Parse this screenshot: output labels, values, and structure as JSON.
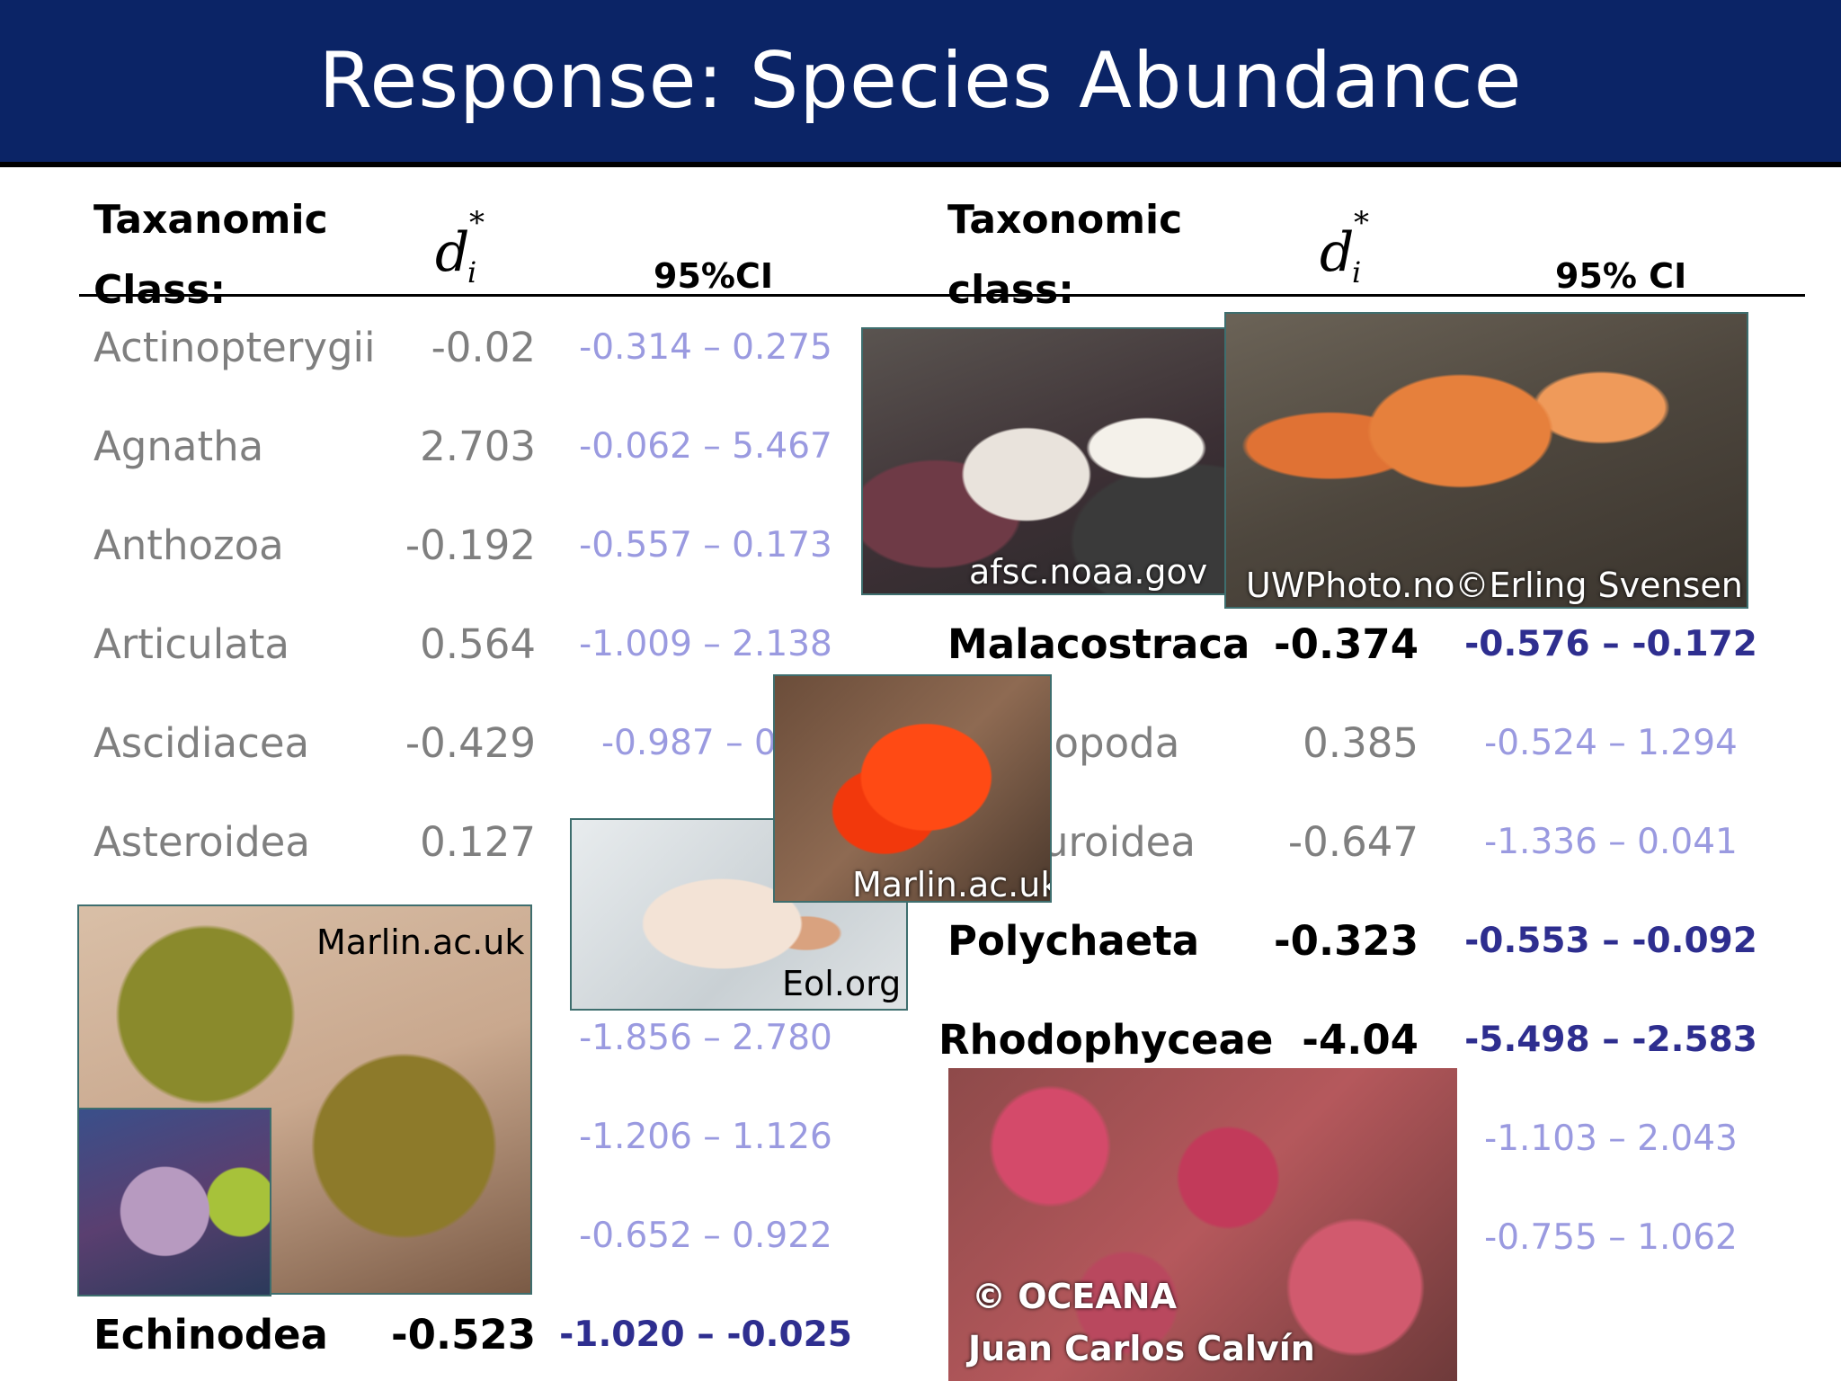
{
  "title": "Response: Species Abundance",
  "left_header": {
    "class_label_1": "Taxanomic",
    "class_label_2": "Class:",
    "d_symbol": "d",
    "d_sup": "*",
    "d_sub": "i",
    "ci_label": "95%CI"
  },
  "right_header": {
    "class_label_1": "Taxonomic",
    "class_label_2": "class:",
    "d_symbol": "d",
    "d_sup": "*",
    "d_sub": "i",
    "ci_label": "95% CI"
  },
  "left_rows": [
    {
      "name": "Actinopterygii",
      "value": "-0.02",
      "ci": "-0.314 – 0.275"
    },
    {
      "name": "Agnatha",
      "value": "2.703",
      "ci": "-0.062 – 5.467"
    },
    {
      "name": "Anthozoa",
      "value": "-0.192",
      "ci": "-0.557 – 0.173"
    },
    {
      "name": "Articulata",
      "value": "0.564",
      "ci": "-1.009 – 2.138"
    },
    {
      "name": "Ascidiacea",
      "value": "-0.429",
      "ci": "-0.987 – 0.1"
    },
    {
      "name": "Asteroidea",
      "value": "0.127",
      "ci": ""
    },
    {
      "name": "",
      "value": "",
      "ci": ""
    },
    {
      "name": "",
      "value": "",
      "ci": "-1.856 – 2.780"
    },
    {
      "name": "",
      "value": "",
      "ci": "-1.206 – 1.126"
    },
    {
      "name": "",
      "value": "",
      "ci": "-0.652 – 0.922"
    },
    {
      "name": "Echinodea",
      "value": "-0.523",
      "ci": "-1.020 – -0.025"
    }
  ],
  "right_rows": [
    {
      "name": "Malacostraca",
      "value": "-0.374",
      "ci": "-0.576 – -0.172"
    },
    {
      "name": "lopoda",
      "value": "0.385",
      "ci": "-0.524 – 1.294"
    },
    {
      "name": "uroidea",
      "value": "-0.647",
      "ci": "-1.336 – 0.041"
    },
    {
      "name": "Polychaeta",
      "value": "-0.323",
      "ci": "-0.553 – -0.092"
    },
    {
      "name": "Rhodophyceae",
      "value": "-4.04",
      "ci": "-5.498 – -2.583"
    },
    {
      "name": "",
      "value": "",
      "ci": "-1.103 – 2.043"
    },
    {
      "name": "",
      "value": "",
      "ci": "-0.755 – 1.062"
    }
  ],
  "credits": {
    "hermit_crab": "afsc.noaa.gov",
    "squat_lobster": "UWPhoto.no©Erling Svensen",
    "red_worm": "Marlin.ac.uk",
    "fan_worm": "Eol.org",
    "urchins": "Marlin.ac.uk",
    "algae_1": "© OCEANA",
    "algae_2": "Juan Carlos Calvín"
  },
  "colors": {
    "banner": "#0b2466",
    "muted_text": "#7f7f7f",
    "muted_ci": "#9a9ae0",
    "bold_ci": "#2e2e8f"
  }
}
